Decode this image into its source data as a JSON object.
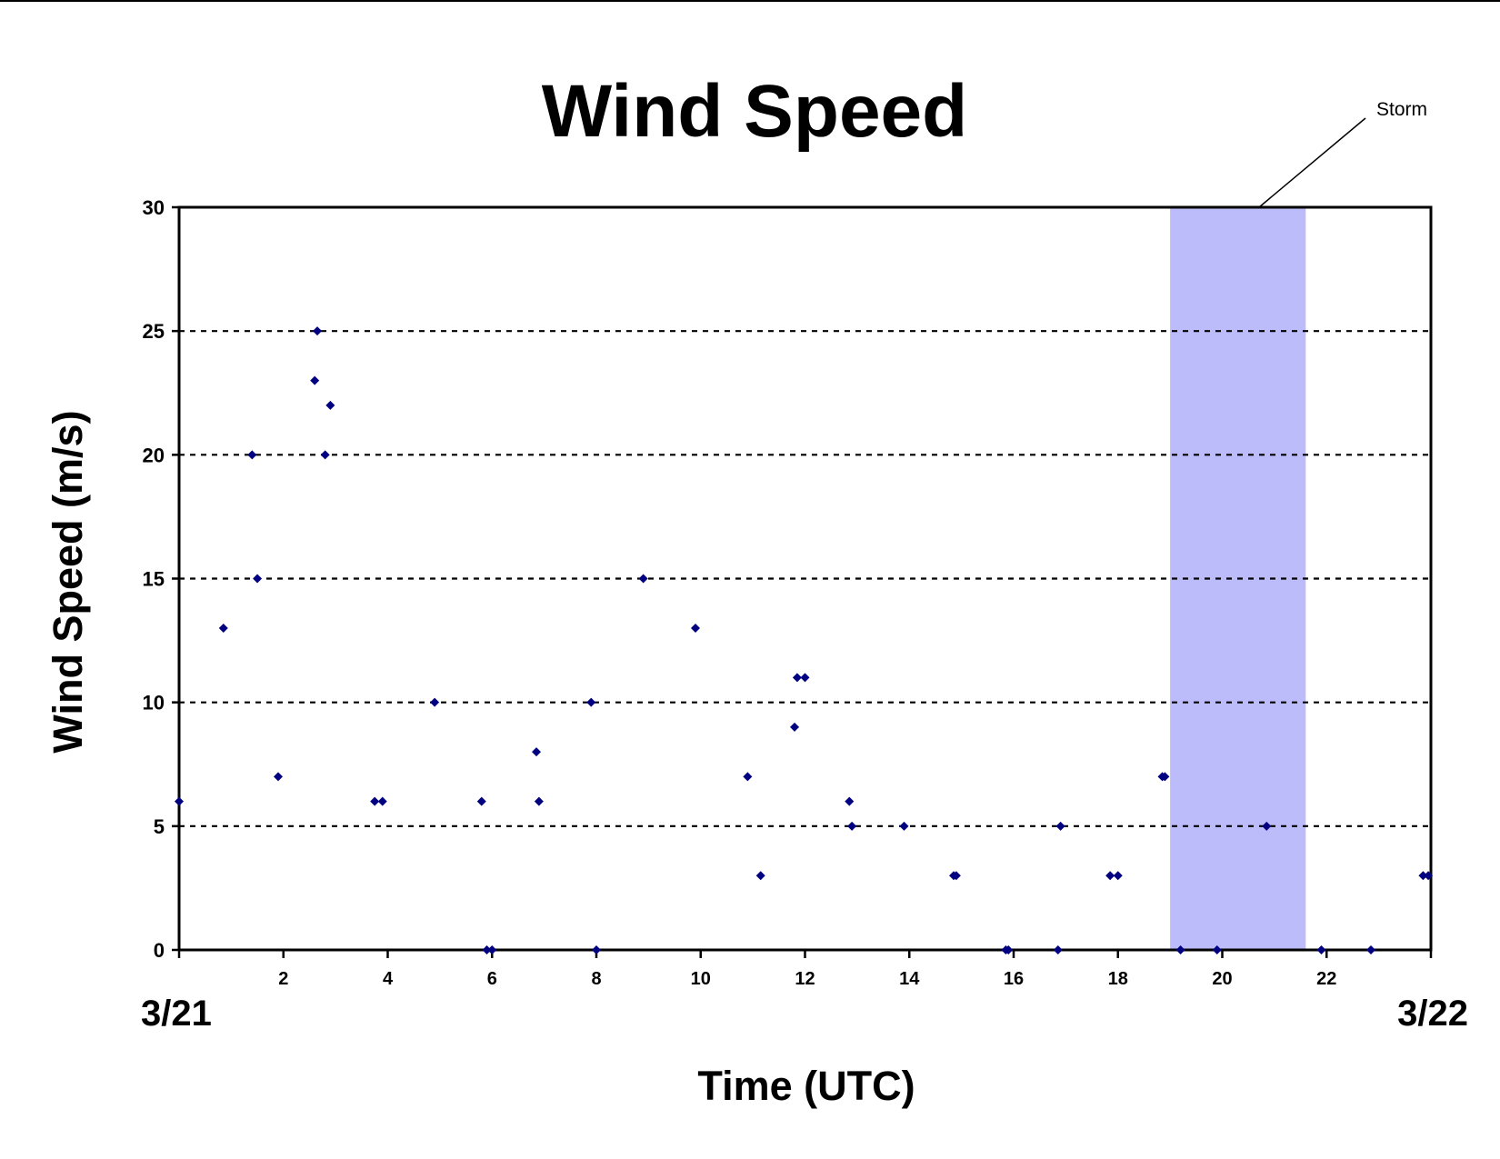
{
  "chart_data": {
    "type": "scatter",
    "title": "Wind Speed",
    "xlabel": "Time (UTC)",
    "ylabel": "Wind Speed (m/s)",
    "xlim": [
      0,
      24
    ],
    "ylim": [
      0,
      30
    ],
    "x_ticks": [
      2,
      4,
      6,
      8,
      10,
      12,
      14,
      16,
      18,
      20,
      22
    ],
    "y_ticks": [
      0,
      5,
      10,
      15,
      20,
      25,
      30
    ],
    "start_date_label": "3/21",
    "end_date_label": "3/22",
    "grid": "horizontal dotted",
    "marker_color": "#000080",
    "storm": {
      "label": "Storm",
      "x_start": 19.0,
      "x_end": 21.6,
      "color": "#bcbcfa"
    },
    "points": [
      [
        0.0,
        6
      ],
      [
        0.85,
        13
      ],
      [
        1.4,
        20
      ],
      [
        1.5,
        15
      ],
      [
        1.9,
        7
      ],
      [
        2.6,
        23
      ],
      [
        2.65,
        25
      ],
      [
        2.8,
        20
      ],
      [
        2.9,
        22
      ],
      [
        3.75,
        6
      ],
      [
        3.9,
        6
      ],
      [
        4.9,
        10
      ],
      [
        5.8,
        6
      ],
      [
        5.9,
        0
      ],
      [
        6.0,
        0
      ],
      [
        6.85,
        8
      ],
      [
        6.9,
        6
      ],
      [
        7.9,
        10
      ],
      [
        8.0,
        0
      ],
      [
        8.9,
        15
      ],
      [
        9.9,
        13
      ],
      [
        10.9,
        7
      ],
      [
        11.15,
        3
      ],
      [
        11.8,
        9
      ],
      [
        11.85,
        11
      ],
      [
        12.0,
        11
      ],
      [
        12.85,
        6
      ],
      [
        12.9,
        5
      ],
      [
        13.9,
        5
      ],
      [
        14.85,
        3
      ],
      [
        14.9,
        3
      ],
      [
        15.85,
        0
      ],
      [
        15.9,
        0
      ],
      [
        16.85,
        0
      ],
      [
        16.9,
        5
      ],
      [
        17.85,
        3
      ],
      [
        18.0,
        3
      ],
      [
        18.85,
        7
      ],
      [
        18.9,
        7
      ],
      [
        19.2,
        0
      ],
      [
        19.9,
        0
      ],
      [
        20.85,
        5
      ],
      [
        21.9,
        0
      ],
      [
        22.85,
        0
      ],
      [
        23.85,
        3
      ],
      [
        23.95,
        3
      ]
    ]
  }
}
